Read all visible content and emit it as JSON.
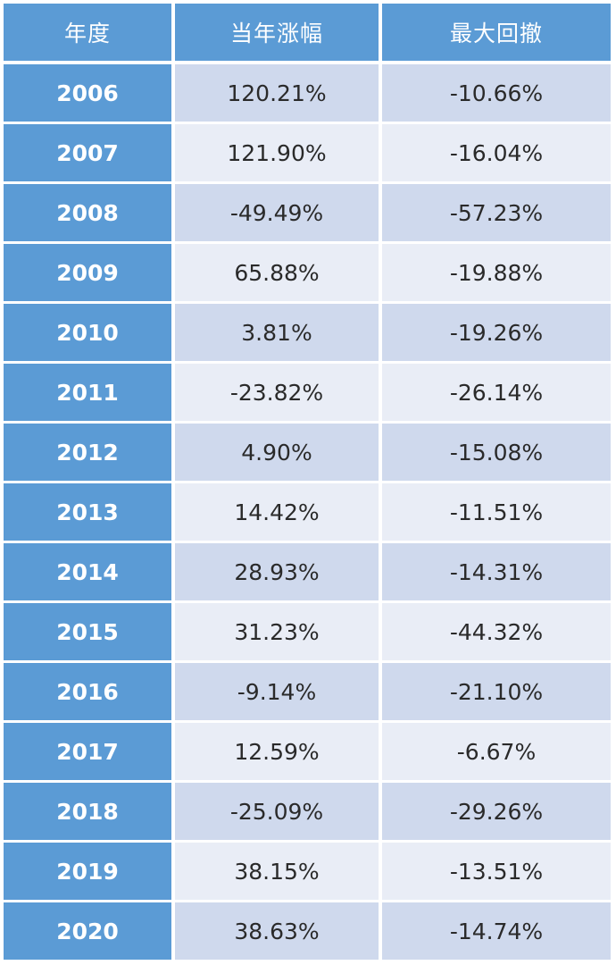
{
  "header": {
    "year": "年度",
    "annual_gain": "当年涨幅",
    "max_drawdown": "最大回撤"
  },
  "rows": [
    {
      "year": "2006",
      "gain": "120.21%",
      "drawdown": "-10.66%"
    },
    {
      "year": "2007",
      "gain": "121.90%",
      "drawdown": "-16.04%"
    },
    {
      "year": "2008",
      "gain": "-49.49%",
      "drawdown": "-57.23%"
    },
    {
      "year": "2009",
      "gain": "65.88%",
      "drawdown": "-19.88%"
    },
    {
      "year": "2010",
      "gain": "3.81%",
      "drawdown": "-19.26%"
    },
    {
      "year": "2011",
      "gain": "-23.82%",
      "drawdown": "-26.14%"
    },
    {
      "year": "2012",
      "gain": "4.90%",
      "drawdown": "-15.08%"
    },
    {
      "year": "2013",
      "gain": "14.42%",
      "drawdown": "-11.51%"
    },
    {
      "year": "2014",
      "gain": "28.93%",
      "drawdown": "-14.31%"
    },
    {
      "year": "2015",
      "gain": "31.23%",
      "drawdown": "-44.32%"
    },
    {
      "year": "2016",
      "gain": "-9.14%",
      "drawdown": "-21.10%"
    },
    {
      "year": "2017",
      "gain": "12.59%",
      "drawdown": "-6.67%"
    },
    {
      "year": "2018",
      "gain": "-25.09%",
      "drawdown": "-29.26%"
    },
    {
      "year": "2019",
      "gain": "38.15%",
      "drawdown": "-13.51%"
    },
    {
      "year": "2020",
      "gain": "38.63%",
      "drawdown": "-14.74%"
    }
  ],
  "colors": {
    "header_blue": "#5b9bd5",
    "row_dark": "#cfd9ed",
    "row_light": "#e9edf6"
  }
}
